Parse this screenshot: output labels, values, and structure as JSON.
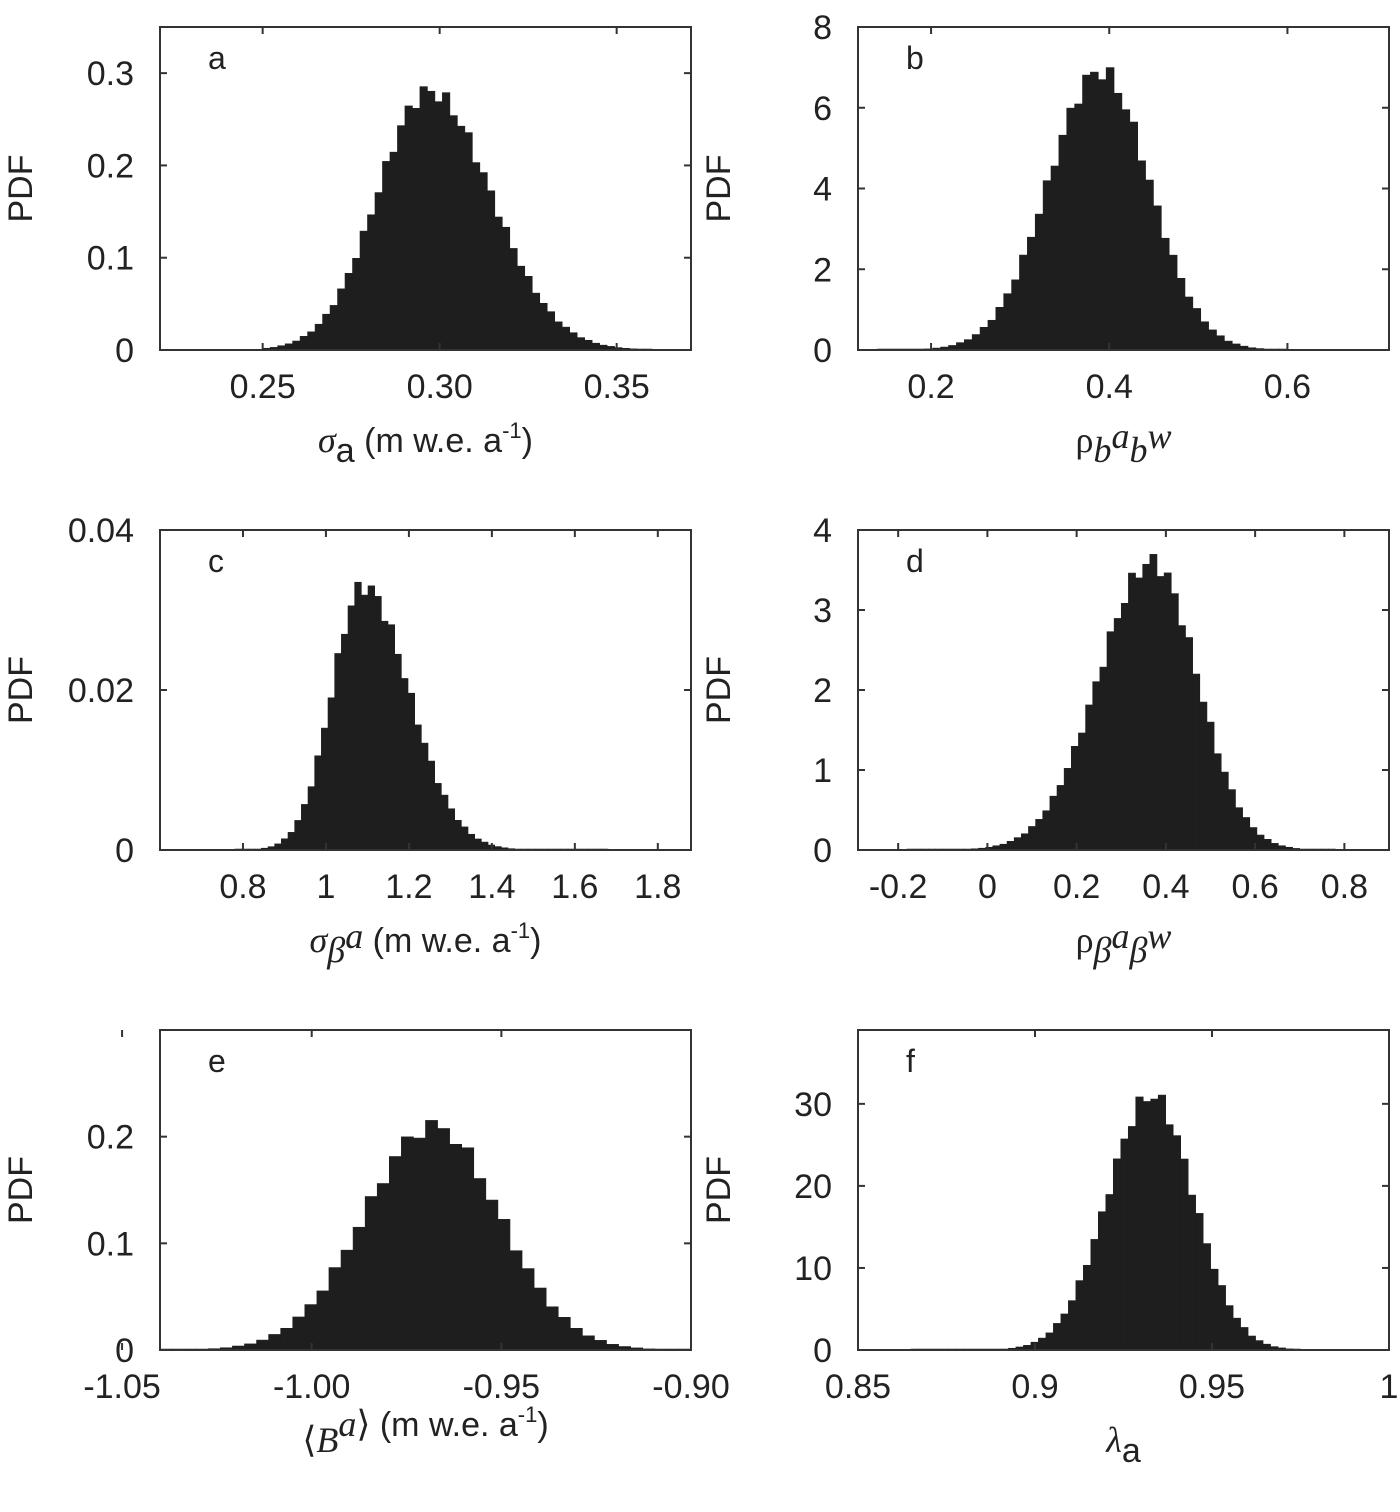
{
  "chart_data": [
    {
      "id": "a",
      "type": "histogram",
      "panel_label": "a",
      "ylabel": "PDF",
      "xlabel": {
        "symbol": "σ",
        "sub": "a",
        "suffix": " (m w.e. a",
        "sup": "-1",
        "close": ")"
      },
      "xlim": [
        0.221,
        0.371
      ],
      "ylim": [
        0,
        0.35
      ],
      "xticks": [
        0.25,
        0.3,
        0.35
      ],
      "xtick_labels": [
        "0.25",
        "0.30",
        "0.35"
      ],
      "yticks": [
        0,
        0.1,
        0.2,
        0.3
      ],
      "ytick_labels": [
        "0",
        "0.1",
        "0.2",
        "0.3"
      ],
      "dist": {
        "peak_x": 0.297,
        "peak_y": 0.28,
        "sigma_left": 0.0145,
        "sigma_right": 0.0175,
        "support": [
          0.25,
          0.36
        ],
        "nbins": 52
      }
    },
    {
      "id": "b",
      "type": "histogram",
      "panel_label": "b",
      "ylabel": "PDF",
      "xlabel": {
        "symbol": "ρ",
        "sub": "b",
        "sub_sup": "a",
        "sub2": "b",
        "sub2_sup": "w"
      },
      "xlim": [
        0.118,
        0.714
      ],
      "ylim": [
        0,
        8
      ],
      "xticks": [
        0.2,
        0.4,
        0.6
      ],
      "xtick_labels": [
        "0.2",
        "0.4",
        "0.6"
      ],
      "yticks": [
        0,
        2,
        4,
        6,
        8
      ],
      "ytick_labels": [
        "0",
        "2",
        "4",
        "6",
        "8"
      ],
      "dist": {
        "peak_x": 0.39,
        "peak_y": 6.9,
        "sigma_left": 0.058,
        "sigma_right": 0.055,
        "support": [
          0.14,
          0.6
        ],
        "nbins": 52
      }
    },
    {
      "id": "c",
      "type": "histogram",
      "panel_label": "c",
      "ylabel": "PDF",
      "xlabel": {
        "symbol": "σ",
        "sub": "β",
        "sub_sup": "a",
        "suffix": "  (m w.e. a",
        "sup": "-1",
        "close": ")"
      },
      "xlim": [
        0.6,
        1.88
      ],
      "ylim": [
        0,
        0.04
      ],
      "xticks": [
        0.8,
        1.0,
        1.2,
        1.4,
        1.6,
        1.8
      ],
      "xtick_labels": [
        "0.8",
        "1",
        "1.2",
        "1.4",
        "1.6",
        "1.8"
      ],
      "yticks": [
        0,
        0.02,
        0.04
      ],
      "ytick_labels": [
        "0",
        "0.02",
        "0.04"
      ],
      "dist": {
        "peak_x": 1.09,
        "peak_y": 0.033,
        "sigma_left": 0.075,
        "sigma_right": 0.11,
        "support": [
          0.78,
          1.68
        ],
        "nbins": 56
      }
    },
    {
      "id": "d",
      "type": "histogram",
      "panel_label": "d",
      "ylabel": "PDF",
      "xlabel": {
        "symbol": "ρ",
        "sub": "β",
        "sub_sup": "a",
        "sub2": "β",
        "sub2_sup": "w"
      },
      "xlim": [
        -0.29,
        0.9
      ],
      "ylim": [
        0,
        4
      ],
      "xticks": [
        -0.2,
        0,
        0.2,
        0.4,
        0.6,
        0.8
      ],
      "xtick_labels": [
        "-0.2",
        "0",
        "0.2",
        "0.4",
        "0.6",
        "0.8"
      ],
      "yticks": [
        0,
        1,
        2,
        3,
        4
      ],
      "ytick_labels": [
        "0",
        "1",
        "2",
        "3",
        "4"
      ],
      "dist": {
        "peak_x": 0.37,
        "peak_y": 3.6,
        "sigma_left": 0.12,
        "sigma_right": 0.1,
        "support": [
          -0.18,
          0.78
        ],
        "nbins": 60
      }
    },
    {
      "id": "e",
      "type": "histogram",
      "panel_label": "e",
      "ylabel": "PDF",
      "xlabel": {
        "symbol": "B",
        "sup_italic": "a",
        "brackets": "angle",
        "suffix": "  (m w.e. a",
        "sup": "-1",
        "close": ")"
      },
      "xlim": [
        -1.04,
        -0.9
      ],
      "ylim": [
        0,
        0.3
      ],
      "xticks": [
        -1.05,
        -1.0,
        -0.95,
        -0.9
      ],
      "xtick_labels": [
        "-1.05",
        "-1.00",
        "-0.95",
        "-0.90"
      ],
      "yticks": [
        0,
        0.1,
        0.2
      ],
      "ytick_labels": [
        "0",
        "0.1",
        "0.2"
      ],
      "dist": {
        "peak_x": -0.968,
        "peak_y": 0.21,
        "sigma_left": 0.018,
        "sigma_right": 0.0175,
        "support": [
          -1.04,
          -0.9
        ],
        "nbins": 44
      }
    },
    {
      "id": "f",
      "type": "histogram",
      "panel_label": "f",
      "ylabel": "PDF",
      "xlabel": {
        "symbol": "λ",
        "sub": "a"
      },
      "xlim": [
        0.85,
        1.0
      ],
      "ylim": [
        0,
        39
      ],
      "xticks": [
        0.85,
        0.9,
        0.95,
        1.0
      ],
      "xtick_labels": [
        "0.85",
        "0.9",
        "0.95",
        "1"
      ],
      "yticks": [
        0,
        10,
        20,
        30
      ],
      "ytick_labels": [
        "0",
        "10",
        "20",
        "30"
      ],
      "dist": {
        "peak_x": 0.933,
        "peak_y": 31,
        "sigma_left": 0.0125,
        "sigma_right": 0.0118,
        "support": [
          0.865,
          0.975
        ],
        "nbins": 52
      }
    }
  ]
}
